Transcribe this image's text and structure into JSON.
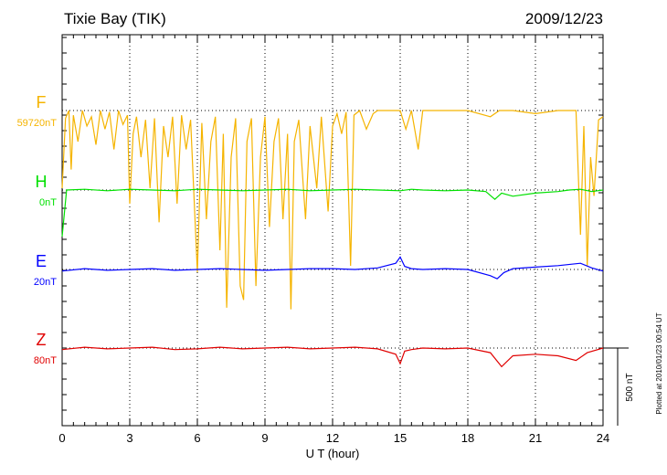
{
  "chart_data": {
    "type": "line",
    "title": "Tixie Bay (TIK)",
    "date": "2009/12/23",
    "xlabel": "U T (hour)",
    "xlim": [
      0,
      24
    ],
    "x_ticks": [
      "0",
      "3",
      "6",
      "9",
      "12",
      "15",
      "18",
      "21",
      "24"
    ],
    "scale_bar_label": "500 nT",
    "footer_note": "Plotted at 2010/01/23 00:54 UT",
    "series": [
      {
        "name": "F",
        "baseline_label": "59720nT",
        "color": "#f5b400",
        "points": [
          [
            0,
            -500
          ],
          [
            0.15,
            -50
          ],
          [
            0.3,
            0
          ],
          [
            0.4,
            -380
          ],
          [
            0.5,
            -30
          ],
          [
            0.7,
            -200
          ],
          [
            0.9,
            0
          ],
          [
            1.1,
            -100
          ],
          [
            1.3,
            -40
          ],
          [
            1.5,
            -220
          ],
          [
            1.7,
            0
          ],
          [
            1.9,
            -120
          ],
          [
            2.1,
            -10
          ],
          [
            2.3,
            -250
          ],
          [
            2.5,
            0
          ],
          [
            2.7,
            -90
          ],
          [
            2.9,
            -30
          ],
          [
            3.0,
            -600
          ],
          [
            3.15,
            -150
          ],
          [
            3.3,
            -40
          ],
          [
            3.5,
            -300
          ],
          [
            3.7,
            -60
          ],
          [
            3.9,
            -500
          ],
          [
            4.1,
            -50
          ],
          [
            4.3,
            -720
          ],
          [
            4.5,
            -100
          ],
          [
            4.7,
            -300
          ],
          [
            4.9,
            -40
          ],
          [
            5.1,
            -600
          ],
          [
            5.3,
            -30
          ],
          [
            5.5,
            -250
          ],
          [
            5.7,
            -60
          ],
          [
            6.0,
            -1040
          ],
          [
            6.2,
            -80
          ],
          [
            6.4,
            -700
          ],
          [
            6.6,
            -200
          ],
          [
            6.8,
            -40
          ],
          [
            7.0,
            -900
          ],
          [
            7.15,
            -150
          ],
          [
            7.3,
            -1270
          ],
          [
            7.5,
            -300
          ],
          [
            7.7,
            -50
          ],
          [
            7.9,
            -1130
          ],
          [
            8.05,
            -1220
          ],
          [
            8.2,
            -200
          ],
          [
            8.4,
            -50
          ],
          [
            8.6,
            -1130
          ],
          [
            8.8,
            -300
          ],
          [
            9.0,
            -40
          ],
          [
            9.2,
            -750
          ],
          [
            9.4,
            -200
          ],
          [
            9.6,
            -50
          ],
          [
            9.8,
            -700
          ],
          [
            10.0,
            -150
          ],
          [
            10.15,
            -1280
          ],
          [
            10.3,
            -200
          ],
          [
            10.5,
            -60
          ],
          [
            10.8,
            -700
          ],
          [
            11.0,
            -100
          ],
          [
            11.3,
            -500
          ],
          [
            11.5,
            -40
          ],
          [
            11.8,
            -650
          ],
          [
            12.0,
            -100
          ],
          [
            12.2,
            -20
          ],
          [
            12.4,
            -150
          ],
          [
            12.6,
            -10
          ],
          [
            12.8,
            -1000
          ],
          [
            12.95,
            -30
          ],
          [
            13.2,
            0
          ],
          [
            13.5,
            -120
          ],
          [
            13.8,
            -20
          ],
          [
            14.0,
            0
          ],
          [
            14.5,
            0
          ],
          [
            15.0,
            0
          ],
          [
            15.25,
            -120
          ],
          [
            15.5,
            0
          ],
          [
            15.8,
            -250
          ],
          [
            16.0,
            0
          ],
          [
            17.0,
            0
          ],
          [
            18.0,
            0
          ],
          [
            19.0,
            -40
          ],
          [
            19.4,
            0
          ],
          [
            20.0,
            0
          ],
          [
            21.0,
            -20
          ],
          [
            22.0,
            0
          ],
          [
            22.8,
            0
          ],
          [
            23.0,
            -800
          ],
          [
            23.15,
            -100
          ],
          [
            23.3,
            -1000
          ],
          [
            23.45,
            -300
          ],
          [
            23.6,
            -550
          ],
          [
            23.8,
            -60
          ],
          [
            24.0,
            -40
          ]
        ]
      },
      {
        "name": "H",
        "baseline_label": "0nT",
        "color": "#00e000",
        "points": [
          [
            0,
            -300
          ],
          [
            0.2,
            0
          ],
          [
            1,
            5
          ],
          [
            2,
            -5
          ],
          [
            3,
            5
          ],
          [
            4,
            0
          ],
          [
            5,
            -5
          ],
          [
            6,
            5
          ],
          [
            7,
            0
          ],
          [
            8,
            -5
          ],
          [
            9,
            0
          ],
          [
            10,
            5
          ],
          [
            11,
            -5
          ],
          [
            12,
            0
          ],
          [
            13,
            5
          ],
          [
            14,
            0
          ],
          [
            15,
            -5
          ],
          [
            15.5,
            5
          ],
          [
            16,
            0
          ],
          [
            17,
            -5
          ],
          [
            18,
            0
          ],
          [
            18.8,
            -10
          ],
          [
            19.2,
            -60
          ],
          [
            19.5,
            -20
          ],
          [
            20,
            -40
          ],
          [
            21,
            -20
          ],
          [
            22,
            -10
          ],
          [
            22.5,
            0
          ],
          [
            23,
            5
          ],
          [
            23.5,
            -10
          ],
          [
            24,
            0
          ]
        ]
      },
      {
        "name": "E",
        "baseline_label": "20nT",
        "color": "#0000ff",
        "points": [
          [
            0,
            -10
          ],
          [
            1,
            5
          ],
          [
            2,
            -5
          ],
          [
            3,
            0
          ],
          [
            4,
            5
          ],
          [
            5,
            -5
          ],
          [
            6,
            0
          ],
          [
            7,
            5
          ],
          [
            8,
            0
          ],
          [
            9,
            -5
          ],
          [
            10,
            0
          ],
          [
            11,
            5
          ],
          [
            12,
            5
          ],
          [
            13,
            0
          ],
          [
            14,
            10
          ],
          [
            14.8,
            40
          ],
          [
            15.0,
            80
          ],
          [
            15.2,
            20
          ],
          [
            15.5,
            5
          ],
          [
            16,
            0
          ],
          [
            17,
            5
          ],
          [
            18,
            0
          ],
          [
            19,
            -40
          ],
          [
            19.3,
            -60
          ],
          [
            19.6,
            -20
          ],
          [
            20,
            5
          ],
          [
            21,
            15
          ],
          [
            22,
            25
          ],
          [
            23,
            40
          ],
          [
            23.5,
            10
          ],
          [
            24,
            -10
          ]
        ]
      },
      {
        "name": "Z",
        "baseline_label": "80nT",
        "color": "#e00000",
        "points": [
          [
            0,
            -10
          ],
          [
            1,
            5
          ],
          [
            2,
            -5
          ],
          [
            3,
            0
          ],
          [
            4,
            5
          ],
          [
            5,
            -10
          ],
          [
            6,
            -5
          ],
          [
            7,
            5
          ],
          [
            8,
            -5
          ],
          [
            9,
            0
          ],
          [
            10,
            5
          ],
          [
            11,
            -5
          ],
          [
            12,
            0
          ],
          [
            13,
            5
          ],
          [
            14,
            -5
          ],
          [
            14.8,
            -40
          ],
          [
            15.0,
            -100
          ],
          [
            15.2,
            -20
          ],
          [
            15.5,
            -10
          ],
          [
            16,
            0
          ],
          [
            17,
            -5
          ],
          [
            18,
            0
          ],
          [
            19,
            -30
          ],
          [
            19.5,
            -120
          ],
          [
            20,
            -50
          ],
          [
            21,
            -40
          ],
          [
            22,
            -50
          ],
          [
            22.8,
            -80
          ],
          [
            23.3,
            -30
          ],
          [
            24,
            0
          ]
        ]
      }
    ]
  }
}
